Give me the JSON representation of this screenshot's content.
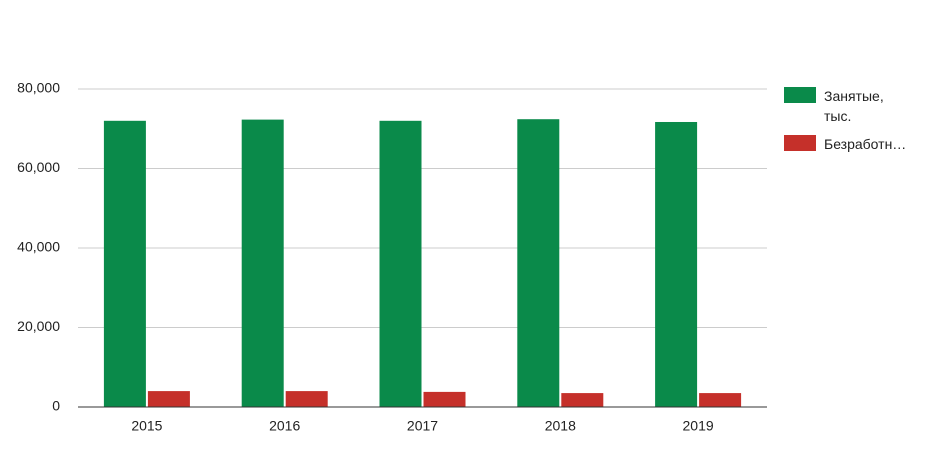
{
  "chart_data": {
    "type": "bar",
    "categories": [
      "2015",
      "2016",
      "2017",
      "2018",
      "2019"
    ],
    "series": [
      {
        "name": "Занятые, тыс.",
        "color": "#0a8a4a",
        "values": [
          72000,
          72300,
          72000,
          72400,
          71700
        ]
      },
      {
        "name": "Безработн…",
        "color": "#c5302a",
        "values": [
          4000,
          4000,
          3800,
          3500,
          3500
        ]
      }
    ],
    "ylim": [
      0,
      80000
    ],
    "yticks": [
      0,
      {
        "value": 20000,
        "label": "20,000"
      },
      {
        "value": 40000,
        "label": "40,000"
      },
      {
        "value": 60000,
        "label": "60,000"
      },
      {
        "value": 80000,
        "label": "80,000"
      }
    ],
    "grid": true,
    "legend": "right"
  }
}
